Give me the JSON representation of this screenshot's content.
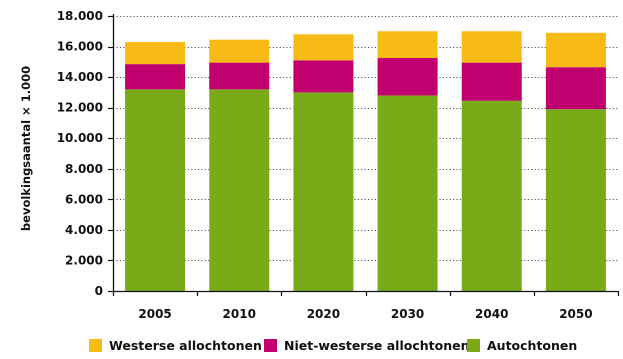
{
  "chart_data": {
    "type": "bar",
    "stacked": true,
    "categories": [
      "2005",
      "2010",
      "2020",
      "2030",
      "2040",
      "2050"
    ],
    "series": [
      {
        "name": "Autochtonen",
        "color": "#7aaa18",
        "values": [
          13200,
          13200,
          13000,
          12800,
          12450,
          11900
        ]
      },
      {
        "name": "Niet-westerse allochtonen",
        "color": "#c0006e",
        "values": [
          1650,
          1750,
          2100,
          2450,
          2500,
          2750
        ]
      },
      {
        "name": "Westerse allochtonen",
        "color": "#f8bb15",
        "values": [
          1450,
          1500,
          1700,
          1750,
          2050,
          2250
        ]
      }
    ],
    "legend_order": [
      "Westerse allochtonen",
      "Niet-westerse allochtonen",
      "Autochtonen"
    ],
    "ylabel": "bevolkingsaantal × 1.000",
    "xlabel": "",
    "ylim": [
      0,
      18000
    ],
    "yticks": [
      0,
      2000,
      4000,
      6000,
      8000,
      10000,
      12000,
      14000,
      16000,
      18000
    ],
    "ytick_labels": [
      "0",
      "2.000",
      "4.000",
      "6.000",
      "8.000",
      "10.000",
      "12.000",
      "14.000",
      "16.000",
      "18.000"
    ],
    "grid": "horizontal dotted",
    "legend_position": "bottom"
  }
}
